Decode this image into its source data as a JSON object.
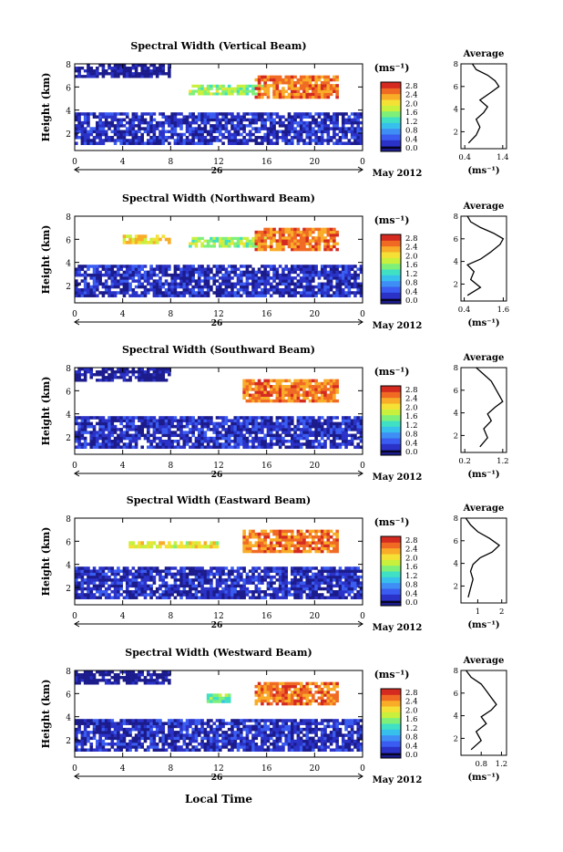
{
  "figure": {
    "xlabel_bottom": "Local Time",
    "date_label": "May 2012",
    "day_label": "26",
    "panel_ylabel": "Height (km)",
    "cbar_unit": "(ms⁻¹)",
    "avg_title": "Average",
    "avg_xlabel": "(ms⁻¹)"
  },
  "colors": {
    "scale": [
      "#1b1b8c",
      "#2a32c8",
      "#3a5cf0",
      "#3f8ef5",
      "#37c0ec",
      "#3fe0c4",
      "#7ef07a",
      "#c8f03c",
      "#f5e135",
      "#f8ac28",
      "#f06a24",
      "#d42a20"
    ],
    "axis": "#000000"
  },
  "chart_data": [
    {
      "type": "heatmap",
      "title": "Spectral Width (Vertical Beam)",
      "xticks": [
        "0",
        "4",
        "8",
        "12",
        "16",
        "20",
        "0"
      ],
      "yticks": [
        "2",
        "4",
        "6",
        "8"
      ],
      "xlim": [
        0,
        24
      ],
      "ylim": [
        0.5,
        8
      ],
      "cbar_ticks": [
        "0.0",
        "0.4",
        "0.8",
        "1.2",
        "1.6",
        "2.0",
        "2.4",
        "2.8"
      ],
      "regions": [
        {
          "x": [
            0,
            24
          ],
          "y": [
            1.0,
            3.8
          ],
          "level": 0.3
        },
        {
          "x": [
            0,
            8
          ],
          "y": [
            6.8,
            8.0
          ],
          "level": 0.1
        },
        {
          "x": [
            9.5,
            16
          ],
          "y": [
            5.3,
            6.2
          ],
          "level": 1.6
        },
        {
          "x": [
            15,
            22
          ],
          "y": [
            5.0,
            7.0
          ],
          "level": 2.4
        }
      ],
      "average": {
        "x": [
          0.5,
          0.7,
          0.8,
          0.7,
          0.9,
          1.0,
          0.8,
          1.1,
          1.3,
          1.2,
          1.0,
          0.7,
          0.6
        ],
        "y": [
          1.0,
          1.7,
          2.4,
          3.1,
          3.7,
          4.2,
          4.8,
          5.5,
          6.0,
          6.5,
          7.0,
          7.5,
          8.0
        ],
        "xticks": [
          "0.4",
          "1.4"
        ],
        "xlim": [
          0.3,
          1.5
        ],
        "yticks": [
          "2",
          "4",
          "6",
          "8"
        ],
        "ylim": [
          0.5,
          8
        ]
      }
    },
    {
      "type": "heatmap",
      "title": "Spectral Width (Northward Beam)",
      "xticks": [
        "0",
        "4",
        "8",
        "12",
        "16",
        "20",
        "0"
      ],
      "yticks": [
        "2",
        "4",
        "6",
        "8"
      ],
      "xlim": [
        0,
        24
      ],
      "ylim": [
        0.5,
        8
      ],
      "cbar_ticks": [
        "0.0",
        "0.4",
        "0.8",
        "1.2",
        "1.6",
        "2.0",
        "2.4",
        "2.8"
      ],
      "regions": [
        {
          "x": [
            0,
            24
          ],
          "y": [
            1.0,
            3.8
          ],
          "level": 0.3
        },
        {
          "x": [
            4,
            8
          ],
          "y": [
            5.6,
            6.4
          ],
          "level": 2.0
        },
        {
          "x": [
            9.5,
            16
          ],
          "y": [
            5.3,
            6.2
          ],
          "level": 1.6
        },
        {
          "x": [
            15,
            22
          ],
          "y": [
            5.0,
            7.0
          ],
          "level": 2.4
        }
      ],
      "average": {
        "x": [
          0.5,
          0.9,
          0.6,
          0.7,
          0.5,
          0.9,
          1.2,
          1.5,
          1.6,
          1.3,
          0.9,
          0.6,
          0.5
        ],
        "y": [
          1.0,
          1.7,
          2.4,
          3.1,
          3.7,
          4.2,
          4.8,
          5.5,
          6.0,
          6.5,
          7.0,
          7.5,
          8.0
        ],
        "xticks": [
          "0.4",
          "1.6"
        ],
        "xlim": [
          0.3,
          1.7
        ],
        "yticks": [
          "2",
          "4",
          "6",
          "8"
        ],
        "ylim": [
          0.5,
          8
        ]
      }
    },
    {
      "type": "heatmap",
      "title": "Spectral Width (Southward Beam)",
      "xticks": [
        "0",
        "4",
        "8",
        "12",
        "16",
        "20",
        "0"
      ],
      "yticks": [
        "2",
        "4",
        "6",
        "8"
      ],
      "xlim": [
        0,
        24
      ],
      "ylim": [
        0.5,
        8
      ],
      "cbar_ticks": [
        "0.0",
        "0.4",
        "0.8",
        "1.2",
        "1.6",
        "2.0",
        "2.4",
        "2.8"
      ],
      "regions": [
        {
          "x": [
            0,
            24
          ],
          "y": [
            1.0,
            3.8
          ],
          "level": 0.3
        },
        {
          "x": [
            0,
            8
          ],
          "y": [
            6.8,
            8.0
          ],
          "level": 0.1
        },
        {
          "x": [
            14,
            22
          ],
          "y": [
            5.0,
            7.0
          ],
          "level": 2.4
        }
      ],
      "average": {
        "x": [
          0.6,
          0.8,
          0.7,
          0.9,
          0.8,
          1.0,
          1.2,
          1.1,
          1.0,
          0.9,
          0.7,
          0.5
        ],
        "y": [
          1.0,
          1.8,
          2.6,
          3.3,
          3.9,
          4.5,
          5.0,
          5.6,
          6.2,
          6.8,
          7.4,
          8.0
        ],
        "xticks": [
          "0.2",
          "1.2"
        ],
        "xlim": [
          0.1,
          1.3
        ],
        "yticks": [
          "2",
          "4",
          "6",
          "8"
        ],
        "ylim": [
          0.5,
          8
        ]
      }
    },
    {
      "type": "heatmap",
      "title": "Spectral Width (Eastward Beam)",
      "xticks": [
        "0",
        "4",
        "8",
        "12",
        "16",
        "20",
        "0"
      ],
      "yticks": [
        "2",
        "4",
        "6",
        "8"
      ],
      "xlim": [
        0,
        24
      ],
      "ylim": [
        0.5,
        8
      ],
      "cbar_ticks": [
        "0.0",
        "0.4",
        "0.8",
        "1.2",
        "1.6",
        "2.0",
        "2.4",
        "2.8"
      ],
      "regions": [
        {
          "x": [
            0,
            24
          ],
          "y": [
            1.0,
            3.8
          ],
          "level": 0.3
        },
        {
          "x": [
            4.5,
            12
          ],
          "y": [
            5.4,
            6.0
          ],
          "level": 1.9
        },
        {
          "x": [
            14,
            22
          ],
          "y": [
            5.0,
            7.0
          ],
          "level": 2.4
        }
      ],
      "average": {
        "x": [
          0.6,
          0.7,
          0.8,
          0.7,
          0.8,
          1.1,
          1.6,
          1.9,
          1.5,
          1.0,
          0.7,
          0.5
        ],
        "y": [
          1.0,
          1.8,
          2.6,
          3.3,
          3.9,
          4.5,
          5.0,
          5.6,
          6.2,
          6.8,
          7.4,
          8.0
        ],
        "xticks": [
          "1",
          "2"
        ],
        "xlim": [
          0.3,
          2.2
        ],
        "yticks": [
          "2",
          "4",
          "6",
          "8"
        ],
        "ylim": [
          0.5,
          8
        ]
      }
    },
    {
      "type": "heatmap",
      "title": "Spectral Width (Westward Beam)",
      "xticks": [
        "0",
        "4",
        "8",
        "12",
        "16",
        "20",
        "0"
      ],
      "yticks": [
        "2",
        "4",
        "6",
        "8"
      ],
      "xlim": [
        0,
        24
      ],
      "ylim": [
        0.5,
        8
      ],
      "cbar_ticks": [
        "0.0",
        "0.4",
        "0.8",
        "1.2",
        "1.6",
        "2.0",
        "2.4",
        "2.8"
      ],
      "regions": [
        {
          "x": [
            0,
            24
          ],
          "y": [
            1.0,
            3.8
          ],
          "level": 0.3
        },
        {
          "x": [
            0,
            8
          ],
          "y": [
            6.8,
            8.0
          ],
          "level": 0.1
        },
        {
          "x": [
            11,
            13
          ],
          "y": [
            5.2,
            6.0
          ],
          "level": 1.4
        },
        {
          "x": [
            15,
            22
          ],
          "y": [
            5.0,
            7.0
          ],
          "level": 2.4
        }
      ],
      "average": {
        "x": [
          0.6,
          0.8,
          0.7,
          0.9,
          0.8,
          1.0,
          1.1,
          1.0,
          0.9,
          0.8,
          0.6,
          0.5
        ],
        "y": [
          1.0,
          1.8,
          2.6,
          3.3,
          3.9,
          4.5,
          5.0,
          5.6,
          6.2,
          6.8,
          7.4,
          8.0
        ],
        "xticks": [
          "0.8",
          "1.2"
        ],
        "xlim": [
          0.4,
          1.3
        ],
        "yticks": [
          "2",
          "4",
          "6",
          "8"
        ],
        "ylim": [
          0.5,
          8
        ]
      }
    }
  ]
}
